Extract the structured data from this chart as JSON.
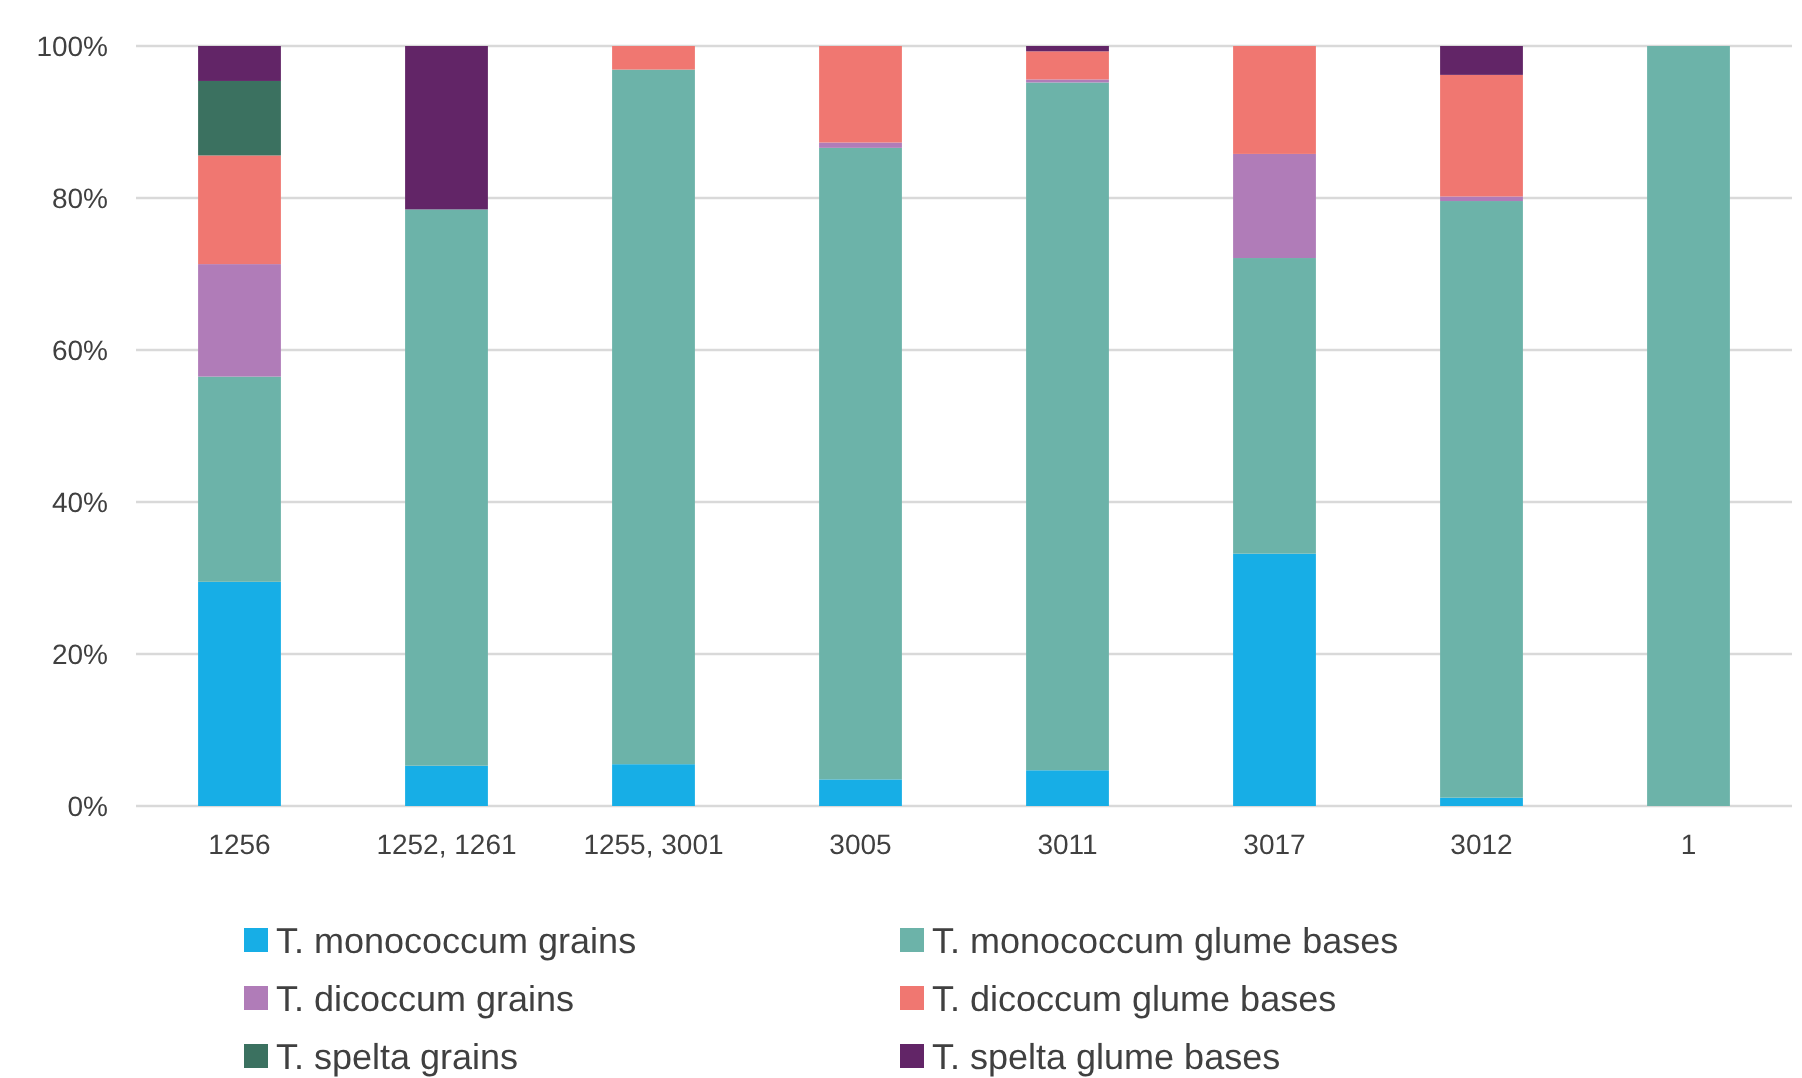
{
  "chart_data": {
    "type": "bar",
    "stacked": true,
    "categories": [
      "1256",
      "1252, 1261",
      "1255, 3001",
      "3005",
      "3011",
      "3017",
      "3012",
      "1"
    ],
    "series": [
      {
        "name": "T. monococcum grains",
        "color": "#17aee6",
        "values": [
          29.5,
          5.3,
          5.5,
          3.5,
          4.7,
          33.2,
          1.1,
          0
        ]
      },
      {
        "name": "T. monococcum glume bases",
        "color": "#6cb3a9",
        "values": [
          27.0,
          73.2,
          91.4,
          83.1,
          90.5,
          38.9,
          78.5,
          100
        ]
      },
      {
        "name": "T. dicoccum grains",
        "color": "#b07cb8",
        "values": [
          14.8,
          0,
          0,
          0.7,
          0.4,
          13.7,
          0.6,
          0
        ]
      },
      {
        "name": "T. dicoccum glume bases",
        "color": "#f07771",
        "values": [
          14.3,
          0,
          3.1,
          12.7,
          3.7,
          14.2,
          16.0,
          0
        ]
      },
      {
        "name": "T. spelta grains",
        "color": "#3b7160",
        "values": [
          9.8,
          0,
          0,
          0,
          0,
          0,
          0,
          0
        ]
      },
      {
        "name": "T. spelta glume bases",
        "color": "#622567",
        "values": [
          4.6,
          21.5,
          0,
          0,
          0.7,
          0,
          3.8,
          0
        ]
      }
    ],
    "ylim": [
      0,
      100
    ],
    "yticks": [
      {
        "value": 0,
        "label": "0%"
      },
      {
        "value": 20,
        "label": "20%"
      },
      {
        "value": 40,
        "label": "40%"
      },
      {
        "value": 60,
        "label": "60%"
      },
      {
        "value": 80,
        "label": "80%"
      },
      {
        "value": 100,
        "label": "100%"
      }
    ],
    "grid": "y",
    "legend": "bottom"
  }
}
